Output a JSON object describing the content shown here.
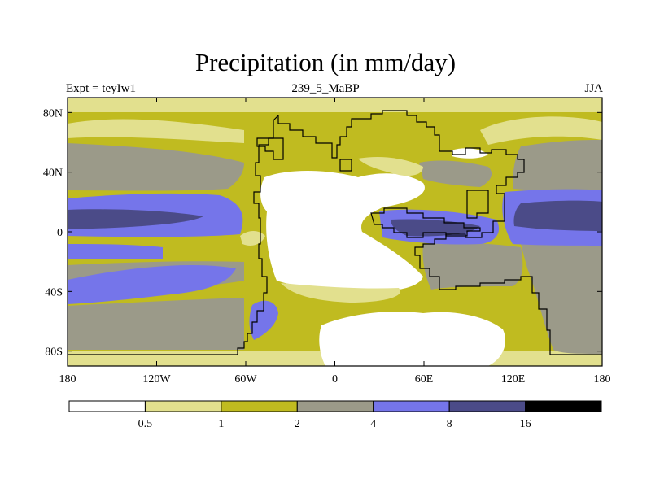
{
  "title": "Precipitation (in mm/day)",
  "left_label": "Expt = teyIw1",
  "center_label": "239_5_MaBP",
  "right_label": "JJA",
  "colors": {
    "lt_0_5": "#ffffff",
    "c0_5_1": "#e2e08e",
    "c1_2": "#c0bb20",
    "c2_4": "#9b9a89",
    "c4_8": "#7575ea",
    "c8_16": "#4b4b88",
    "gt_16": "#000000",
    "coastline": "#000000"
  },
  "chart_data": {
    "type": "heatmap",
    "field": "Precipitation",
    "units": "mm/day",
    "season": "JJA",
    "map_projection": "cylindrical equidistant",
    "lon_range": [
      -180,
      180
    ],
    "lat_range": [
      -90,
      90
    ],
    "x_ticks": [
      {
        "value": -180,
        "label": "180"
      },
      {
        "value": -120,
        "label": "120W"
      },
      {
        "value": -60,
        "label": "60W"
      },
      {
        "value": 0,
        "label": "0"
      },
      {
        "value": 60,
        "label": "60E"
      },
      {
        "value": 120,
        "label": "120E"
      },
      {
        "value": 180,
        "label": "180"
      }
    ],
    "y_ticks": [
      {
        "value": 80,
        "label": "80N"
      },
      {
        "value": 40,
        "label": "40N"
      },
      {
        "value": 0,
        "label": "0"
      },
      {
        "value": -40,
        "label": "40S"
      },
      {
        "value": -80,
        "label": "80S"
      }
    ],
    "colorbar": {
      "levels": [
        0.5,
        1,
        2,
        4,
        8,
        16
      ],
      "level_labels": [
        "0.5",
        "1",
        "2",
        "4",
        "8",
        "16"
      ],
      "bins": [
        "<0.5",
        "0.5-1",
        "1-2",
        "2-4",
        "4-8",
        "8-16",
        ">16"
      ]
    }
  }
}
